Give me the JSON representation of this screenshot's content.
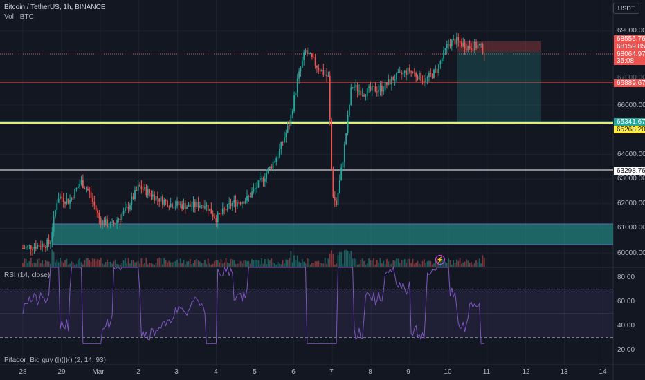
{
  "header": {
    "symbol_title": "Bitcoin / TetherUS, 1h, BINANCE",
    "volume_label": "Vol · BTC",
    "currency": "USDT"
  },
  "rsi_label": "RSI (14, close)",
  "indicator_label": "Pifagor_Big guy (|)(|)() (2, 14, 93)",
  "price_axis": [
    "69000.00",
    "66000.00",
    "64000.00",
    "63000.00",
    "62000.00",
    "61000.00",
    "60000.00"
  ],
  "partial_axis": [
    "67000.00"
  ],
  "price_labels": {
    "p68556": "68556.76",
    "p68159": "68159.85",
    "p68064": "68064.97",
    "countdown": "35:08",
    "p66889": "66889.67",
    "p65341": "65341.67",
    "p65268": "65268.20",
    "p63298": "63298.76"
  },
  "rsi_axis": [
    "80.00",
    "60.00",
    "40.00",
    "20.00"
  ],
  "time_axis": [
    "28",
    "29",
    "Mar",
    "2",
    "3",
    "4",
    "5",
    "6",
    "7",
    "8",
    "9",
    "10",
    "11",
    "12",
    "13",
    "14"
  ],
  "colors": {
    "background": "#131722",
    "up": "#26a69a",
    "down": "#ef5350",
    "yellow": "#ffeb3b",
    "rsi": "#7e57c2"
  },
  "chart_data": {
    "type": "candlestick",
    "title": "Bitcoin / TetherUS, 1h, BINANCE",
    "ylim": [
      59500,
      69600
    ],
    "close_path": [
      [
        28.0,
        60200
      ],
      [
        28.7,
        60400
      ],
      [
        28.9,
        62300
      ],
      [
        29.2,
        62100
      ],
      [
        29.5,
        62900
      ],
      [
        29.7,
        62500
      ],
      [
        30.0,
        61300
      ],
      [
        30.3,
        61100
      ],
      [
        30.7,
        61800
      ],
      [
        31.0,
        62700
      ],
      [
        31.4,
        62300
      ],
      [
        31.8,
        62000
      ],
      [
        32.3,
        61900
      ],
      [
        32.7,
        62000
      ],
      [
        33.0,
        61400
      ],
      [
        33.4,
        62000
      ],
      [
        33.8,
        62200
      ],
      [
        34.2,
        63000
      ],
      [
        34.6,
        64000
      ],
      [
        34.9,
        65300
      ],
      [
        35.1,
        67000
      ],
      [
        35.3,
        68200
      ],
      [
        35.6,
        67600
      ],
      [
        35.9,
        67100
      ],
      [
        36.0,
        62500
      ],
      [
        36.1,
        61900
      ],
      [
        36.3,
        64100
      ],
      [
        36.5,
        66800
      ],
      [
        36.8,
        66500
      ],
      [
        37.0,
        66600
      ],
      [
        37.3,
        66700
      ],
      [
        37.6,
        67100
      ],
      [
        38.0,
        67400
      ],
      [
        38.4,
        67000
      ],
      [
        38.7,
        67400
      ],
      [
        39.0,
        68500
      ],
      [
        39.2,
        68600
      ],
      [
        39.5,
        68350
      ],
      [
        39.8,
        68400
      ],
      [
        39.95,
        68100
      ]
    ],
    "levels": [
      66889.67,
      65341.67,
      65268.2,
      63298.76
    ],
    "x_ticks": [
      "28",
      "29",
      "Mar",
      "2",
      "3",
      "4",
      "5",
      "6",
      "7",
      "8",
      "9",
      "10",
      "11",
      "12",
      "13",
      "14"
    ]
  }
}
